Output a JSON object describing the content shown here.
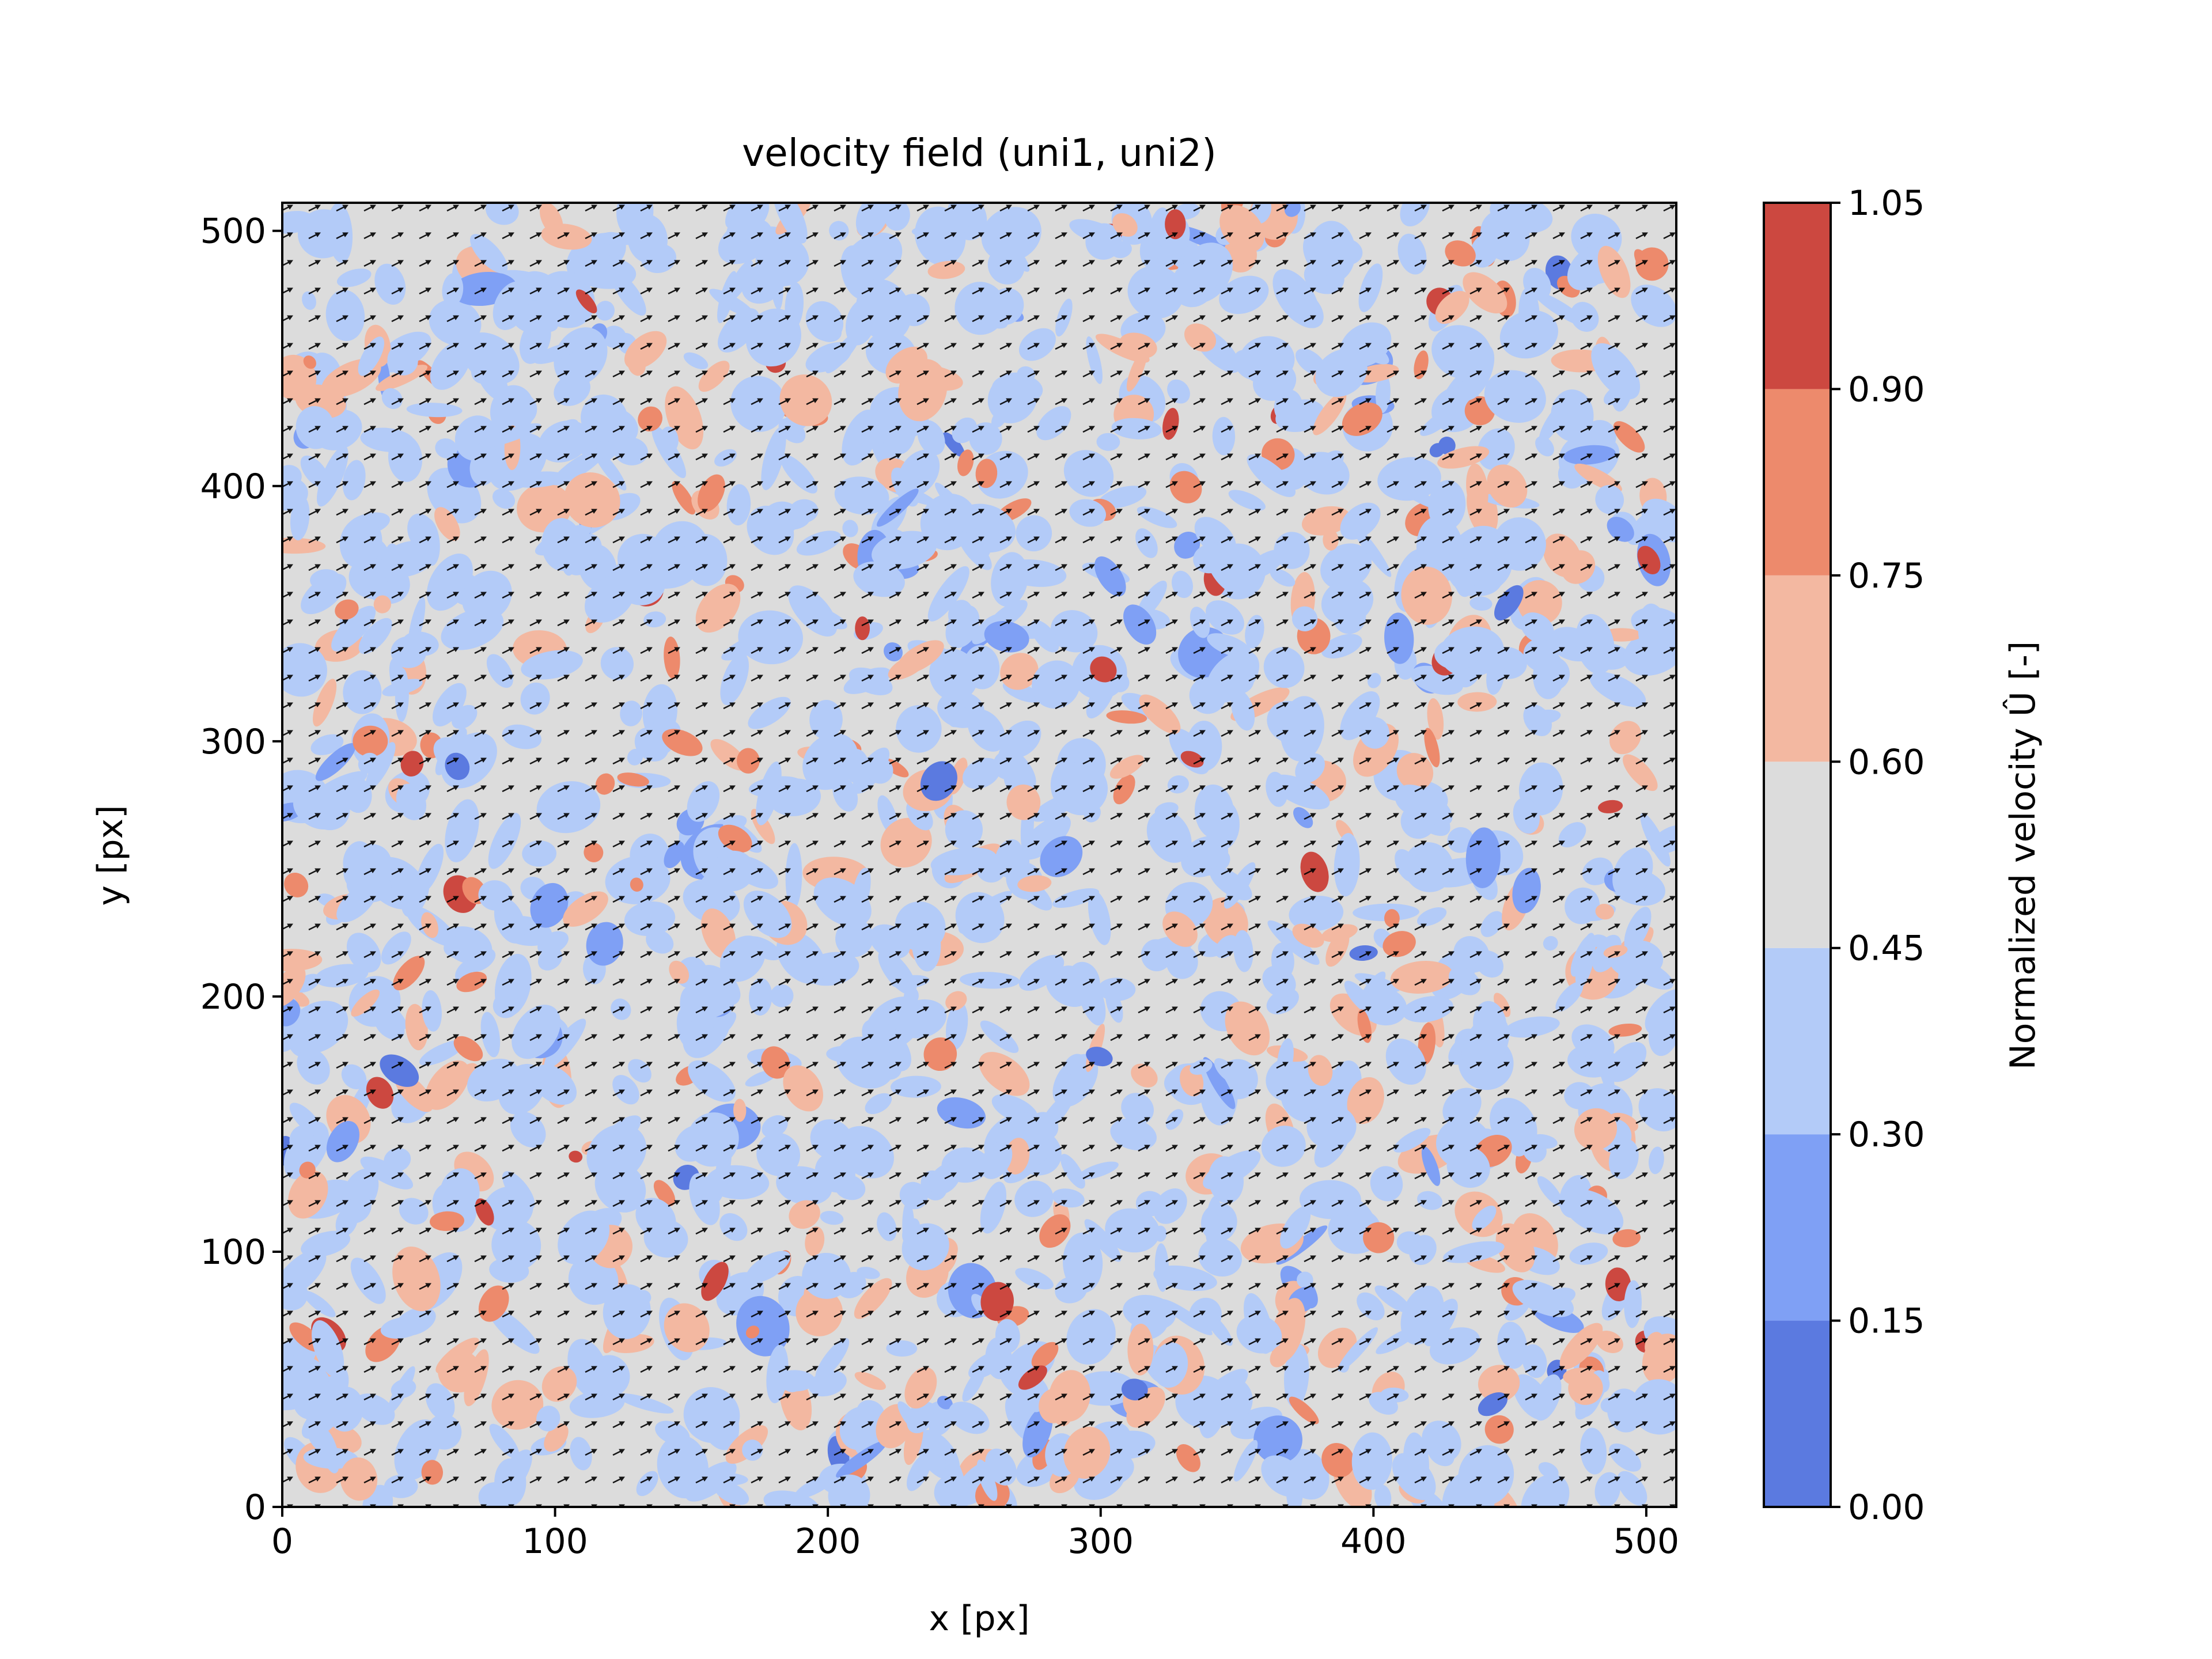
{
  "chart_data": {
    "type": "heatmap",
    "title": "velocity field (uni1, uni2)",
    "xlabel": "x [px]",
    "ylabel": "y [px]",
    "xlim": [
      0,
      511
    ],
    "ylim": [
      0,
      511
    ],
    "x_ticks": [
      0,
      100,
      200,
      300,
      400,
      500
    ],
    "y_ticks": [
      0,
      100,
      200,
      300,
      400,
      500
    ],
    "x_tick_labels": [
      "0",
      "100",
      "200",
      "300",
      "400",
      "500"
    ],
    "y_tick_labels": [
      "0",
      "100",
      "200",
      "300",
      "400",
      "500"
    ],
    "overlay": "quiver",
    "colorbar": {
      "label": "Normalized velocity Û [-]",
      "levels": [
        0.0,
        0.15,
        0.3,
        0.45,
        0.6,
        0.75,
        0.9,
        1.05
      ],
      "level_labels": [
        "0.00",
        "0.15",
        "0.30",
        "0.45",
        "0.60",
        "0.75",
        "0.90",
        "1.05"
      ],
      "colors": [
        "#5b7ae0",
        "#7fa0f5",
        "#b3cbf8",
        "#dcdcdc",
        "#f3b8a1",
        "#ed8a6c",
        "#cc4840"
      ]
    },
    "legend_position": "right (colorbar)",
    "grid": false
  }
}
